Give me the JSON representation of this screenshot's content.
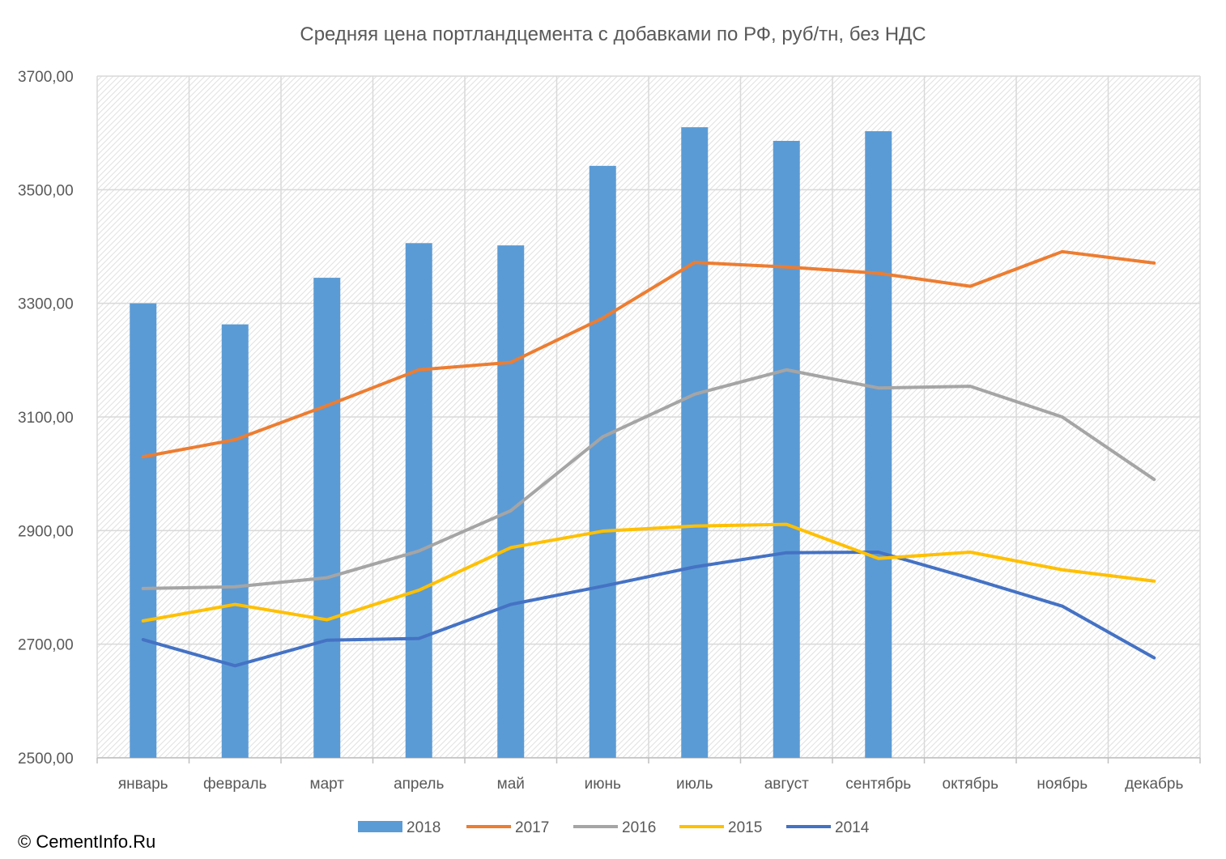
{
  "chart_data": {
    "type": "bar",
    "title": "Средняя цена портландцемента с добавками по РФ, руб/тн, без НДС",
    "categories": [
      "январь",
      "февраль",
      "март",
      "апрель",
      "май",
      "июнь",
      "июль",
      "август",
      "сентябрь",
      "октябрь",
      "ноябрь",
      "декабрь"
    ],
    "ylim": [
      2500,
      3700
    ],
    "yticks": [
      2500,
      2700,
      2900,
      3100,
      3300,
      3500,
      3700
    ],
    "ytick_labels": [
      "2500,00",
      "2700,00",
      "2900,00",
      "3100,00",
      "3300,00",
      "3500,00",
      "3700,00"
    ],
    "grid": true,
    "legend_position": "bottom",
    "series": [
      {
        "name": "2018",
        "kind": "bar",
        "color": "#5B9BD5",
        "values": [
          3300,
          3263,
          3345,
          3406,
          3402,
          3542,
          3610,
          3586,
          3603,
          null,
          null,
          null
        ]
      },
      {
        "name": "2017",
        "kind": "line",
        "color": "#ED7D31",
        "values": [
          3030,
          3060,
          3120,
          3183,
          3196,
          3274,
          3372,
          3364,
          3353,
          3330,
          3391,
          3371
        ]
      },
      {
        "name": "2016",
        "kind": "line",
        "color": "#A5A5A5",
        "values": [
          2798,
          2801,
          2817,
          2864,
          2935,
          3065,
          3140,
          3183,
          3151,
          3154,
          3100,
          2990
        ]
      },
      {
        "name": "2015",
        "kind": "line",
        "color": "#FFC000",
        "values": [
          2741,
          2770,
          2743,
          2795,
          2870,
          2899,
          2908,
          2911,
          2851,
          2862,
          2831,
          2811
        ]
      },
      {
        "name": "2014",
        "kind": "line",
        "color": "#4472C4",
        "values": [
          2708,
          2662,
          2707,
          2710,
          2770,
          2802,
          2836,
          2861,
          2862,
          2816,
          2767,
          2676
        ]
      }
    ]
  },
  "copyright": "© CementInfo.Ru"
}
